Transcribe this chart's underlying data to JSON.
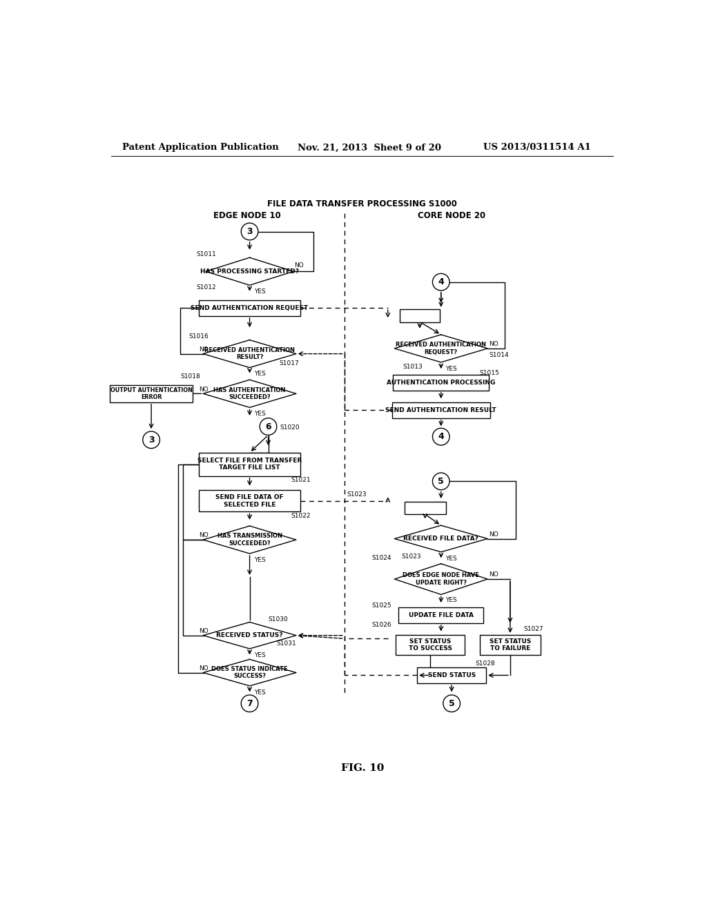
{
  "bg_color": "#ffffff",
  "header_left": "Patent Application Publication",
  "header_mid": "Nov. 21, 2013  Sheet 9 of 20",
  "header_right": "US 2013/0311514 A1",
  "title": "FILE DATA TRANSFER PROCESSING S1000",
  "col_left": "EDGE NODE 10",
  "col_right": "CORE NODE 20",
  "fig_label": "FIG. 10"
}
